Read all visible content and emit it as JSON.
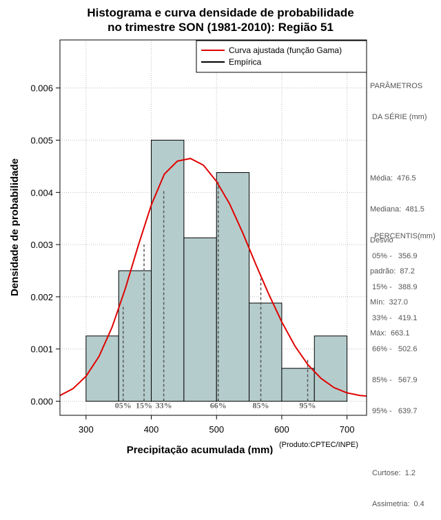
{
  "title_line1": "Histograma e curva densidade de probabilidade",
  "title_line2": "no trimestre SON (1981-2010): Região 51",
  "credit": "(Produto:CPTEC/INPE)",
  "stats_panel": {
    "header1": "PARÂMETROS",
    "header2": " DA SÉRIE (mm)",
    "lines": [
      "Média:  476.5",
      "Mediana:  481.5",
      "Desvio",
      "padrão:  87.2",
      "Mín:  327.0",
      "Máx:  663.1"
    ]
  },
  "percentile_panel": {
    "header": "PERCENTIS(mm)",
    "lines": [
      "05% -   356.9",
      "15% -   388.9",
      "33% -   419.1",
      "66% -   502.6",
      "85% -   567.9",
      "95% -   639.7"
    ]
  },
  "shape_panel": {
    "lines": [
      "Curtose:  1.2",
      "Assimetria:  0.4"
    ]
  },
  "colors": {
    "bar_fill": "#b5cccc",
    "curve": "#e00000",
    "dashed": "#555555",
    "grid": "#bbbbbb",
    "percentile_label": "#666666"
  },
  "chart_data": {
    "type": "bar",
    "title": "Histograma e curva densidade de probabilidade no trimestre SON (1981-2010): Região 51",
    "xlabel": "Precipitação acumulada (mm)",
    "ylabel": "Densidade de probabilidade",
    "xlim": [
      260,
      730
    ],
    "ylim": [
      -0.00027,
      0.00692
    ],
    "x_ticks": [
      300,
      400,
      500,
      600,
      700
    ],
    "x_tick_labels": [
      "300",
      "400",
      "500",
      "600",
      "700"
    ],
    "y_ticks": [
      0,
      0.001,
      0.002,
      0.003,
      0.004,
      0.005,
      0.006
    ],
    "y_tick_labels": [
      "0.000",
      "0.001",
      "0.002",
      "0.003",
      "0.004",
      "0.005",
      "0.006"
    ],
    "grid": true,
    "bins": [
      {
        "start": 300,
        "end": 350,
        "density": 0.00125
      },
      {
        "start": 350,
        "end": 400,
        "density": 0.0025
      },
      {
        "start": 400,
        "end": 450,
        "density": 0.005
      },
      {
        "start": 450,
        "end": 500,
        "density": 0.00313
      },
      {
        "start": 500,
        "end": 550,
        "density": 0.00438
      },
      {
        "start": 550,
        "end": 600,
        "density": 0.00188
      },
      {
        "start": 600,
        "end": 650,
        "density": 0.00063
      },
      {
        "start": 650,
        "end": 700,
        "density": 0.00125
      }
    ],
    "fitted_curve": {
      "name": "Curva ajustada (função Gama)",
      "points": [
        [
          260,
          0.00011
        ],
        [
          280,
          0.00024
        ],
        [
          300,
          0.00048
        ],
        [
          320,
          0.00086
        ],
        [
          340,
          0.00142
        ],
        [
          360,
          0.00215
        ],
        [
          380,
          0.00298
        ],
        [
          400,
          0.00376
        ],
        [
          420,
          0.00435
        ],
        [
          440,
          0.0046
        ],
        [
          460,
          0.00465
        ],
        [
          480,
          0.00452
        ],
        [
          500,
          0.00421
        ],
        [
          520,
          0.00378
        ],
        [
          540,
          0.00323
        ],
        [
          560,
          0.00263
        ],
        [
          580,
          0.00205
        ],
        [
          600,
          0.00152
        ],
        [
          620,
          0.00106
        ],
        [
          640,
          0.0007
        ],
        [
          660,
          0.00044
        ],
        [
          680,
          0.00026
        ],
        [
          700,
          0.00016
        ],
        [
          720,
          0.00011
        ],
        [
          730,
          0.0001
        ]
      ]
    },
    "empirical_name": "Empírica",
    "percentiles": [
      {
        "label": "05%",
        "value": 356.9,
        "curve_density": 0.00185
      },
      {
        "label": "15%",
        "value": 388.9,
        "curve_density": 0.003
      },
      {
        "label": "33%",
        "value": 419.1,
        "curve_density": 0.00405
      },
      {
        "label": "66%",
        "value": 502.6,
        "curve_density": 0.0042
      },
      {
        "label": "85%",
        "value": 567.9,
        "curve_density": 0.00235
      },
      {
        "label": "95%",
        "value": 639.7,
        "curve_density": 0.0008
      }
    ]
  }
}
